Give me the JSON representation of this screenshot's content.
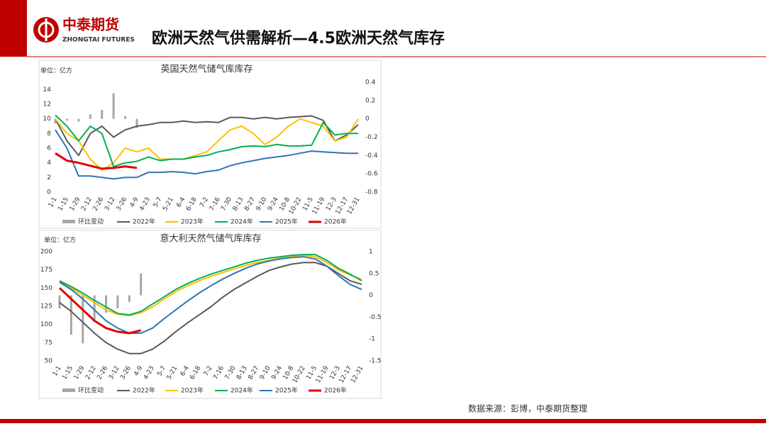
{
  "header": {
    "logo_cn": "中泰期货",
    "logo_en": "ZHONGTAI FUTURES",
    "title": "欧洲天然气供需解析—4.5欧洲天然气库存"
  },
  "source": "数据来源：彭博，中泰期货整理",
  "chart_data": [
    {
      "type": "line",
      "title": "英国天然气储气库库存",
      "unit": "单位：亿方",
      "categories": [
        "1-1",
        "1-15",
        "1-29",
        "2-12",
        "2-26",
        "3-12",
        "3-26",
        "4-9",
        "4-23",
        "5-7",
        "5-21",
        "6-4",
        "6-18",
        "7-2",
        "7-16",
        "7-30",
        "8-13",
        "8-27",
        "9-10",
        "9-24",
        "10-8",
        "10-22",
        "11-5",
        "11-19",
        "12-3",
        "12-17",
        "12-31"
      ],
      "ylim": [
        0,
        15
      ],
      "yticks": [
        0,
        2,
        4,
        6,
        8,
        10,
        12,
        14
      ],
      "y2lim": [
        -0.8,
        0.4
      ],
      "y2ticks": [
        -0.8,
        -0.6,
        -0.4,
        -0.2,
        0,
        0.2,
        0.4
      ],
      "series": [
        {
          "name": "环比变动",
          "type": "bar",
          "axis": "y2",
          "color": "#a6a6a6",
          "values": [
            -0.05,
            -0.02,
            -0.03,
            0.05,
            0.1,
            0.28,
            0.03,
            -0.1,
            null,
            null,
            null,
            null,
            null,
            null,
            null,
            null,
            null,
            null,
            null,
            null,
            null,
            null,
            null,
            null,
            null,
            null,
            null
          ]
        },
        {
          "name": "2022年",
          "color": "#595959",
          "values": [
            10,
            7,
            5,
            8,
            9,
            7.5,
            8.5,
            9,
            9.2,
            9.5,
            9.5,
            9.7,
            9.5,
            9.6,
            9.5,
            10.2,
            10.2,
            10,
            10.2,
            10,
            10.2,
            10.3,
            10.4,
            9.8,
            7,
            7.8,
            9.2
          ]
        },
        {
          "name": "2023年",
          "color": "#ffc000",
          "values": [
            10,
            8,
            7,
            4.5,
            3,
            4,
            6,
            5.5,
            6,
            4.5,
            4.5,
            4.5,
            5,
            5.5,
            7,
            8.5,
            9,
            8,
            6.5,
            7.5,
            9,
            10,
            9.5,
            9,
            7,
            7.5,
            10
          ]
        },
        {
          "name": "2024年",
          "color": "#00b050",
          "values": [
            10.5,
            9,
            7,
            9,
            8,
            3.5,
            4,
            4.2,
            4.8,
            4.3,
            4.5,
            4.5,
            4.8,
            5,
            5.5,
            5.8,
            6.2,
            6.3,
            6.2,
            6.5,
            6.3,
            6.3,
            6.4,
            9.5,
            7.8,
            8,
            8
          ]
        },
        {
          "name": "2025年",
          "color": "#2e75b6",
          "values": [
            8.5,
            6,
            2.2,
            2.2,
            2,
            1.8,
            2,
            2,
            2.7,
            2.7,
            2.8,
            2.7,
            2.5,
            2.8,
            3,
            3.6,
            4,
            4.3,
            4.6,
            4.8,
            5,
            5.3,
            5.6,
            5.5,
            5.4,
            5.3,
            5.3
          ]
        },
        {
          "name": "2026年",
          "color": "#e00000",
          "width": 3,
          "values": [
            5.3,
            4.3,
            4,
            3.6,
            3.2,
            3.3,
            3.5,
            3.3,
            null,
            null,
            null,
            null,
            null,
            null,
            null,
            null,
            null,
            null,
            null,
            null,
            null,
            null,
            null,
            null,
            null,
            null,
            null
          ]
        }
      ]
    },
    {
      "type": "line",
      "title": "意大利天然气储气库库存",
      "unit": "单位：亿方",
      "categories": [
        "1-1",
        "1-15",
        "1-29",
        "2-12",
        "2-26",
        "3-12",
        "3-26",
        "4-9",
        "4-23",
        "5-7",
        "5-21",
        "6-4",
        "6-18",
        "7-2",
        "7-16",
        "7-30",
        "8-13",
        "8-27",
        "9-10",
        "9-24",
        "10-8",
        "10-22",
        "11-5",
        "11-19",
        "12-3",
        "12-17",
        "12-31"
      ],
      "ylim": [
        50,
        200
      ],
      "yticks": [
        50,
        75,
        100,
        125,
        150,
        175,
        200
      ],
      "y2lim": [
        -1.5,
        1
      ],
      "y2ticks": [
        -1.5,
        -1,
        -0.5,
        0,
        0.5,
        1
      ],
      "series": [
        {
          "name": "环比变动",
          "type": "bar",
          "axis": "y2",
          "color": "#a6a6a6",
          "values": [
            -0.3,
            -0.9,
            -1.1,
            -0.6,
            -0.4,
            -0.3,
            -0.15,
            0.5,
            null,
            null,
            null,
            null,
            null,
            null,
            null,
            null,
            null,
            null,
            null,
            null,
            null,
            null,
            null,
            null,
            null,
            null,
            null
          ]
        },
        {
          "name": "2022年",
          "color": "#595959",
          "values": [
            130,
            118,
            103,
            88,
            75,
            66,
            60,
            60,
            66,
            77,
            90,
            102,
            113,
            124,
            137,
            148,
            157,
            166,
            174,
            179,
            183,
            185,
            185,
            180,
            170,
            160,
            155
          ]
        },
        {
          "name": "2023年",
          "color": "#ffc000",
          "values": [
            160,
            150,
            140,
            130,
            120,
            114,
            112,
            116,
            124,
            135,
            145,
            153,
            160,
            166,
            171,
            176,
            181,
            185,
            188,
            191,
            193,
            195,
            193,
            185,
            175,
            168,
            162
          ]
        },
        {
          "name": "2024年",
          "color": "#00b050",
          "values": [
            160,
            152,
            143,
            133,
            124,
            115,
            113,
            118,
            128,
            138,
            148,
            156,
            163,
            169,
            174,
            179,
            184,
            188,
            191,
            193,
            195,
            196,
            196,
            188,
            177,
            169,
            160
          ]
        },
        {
          "name": "2025年",
          "color": "#2e75b6",
          "values": [
            158,
            148,
            135,
            120,
            105,
            95,
            88,
            88,
            95,
            108,
            120,
            132,
            143,
            153,
            162,
            170,
            177,
            183,
            187,
            190,
            192,
            193,
            190,
            180,
            167,
            155,
            148
          ]
        },
        {
          "name": "2026年",
          "color": "#e00000",
          "width": 3,
          "values": [
            150,
            135,
            120,
            105,
            95,
            90,
            88,
            92,
            null,
            null,
            null,
            null,
            null,
            null,
            null,
            null,
            null,
            null,
            null,
            null,
            null,
            null,
            null,
            null,
            null,
            null,
            null
          ]
        }
      ]
    }
  ]
}
